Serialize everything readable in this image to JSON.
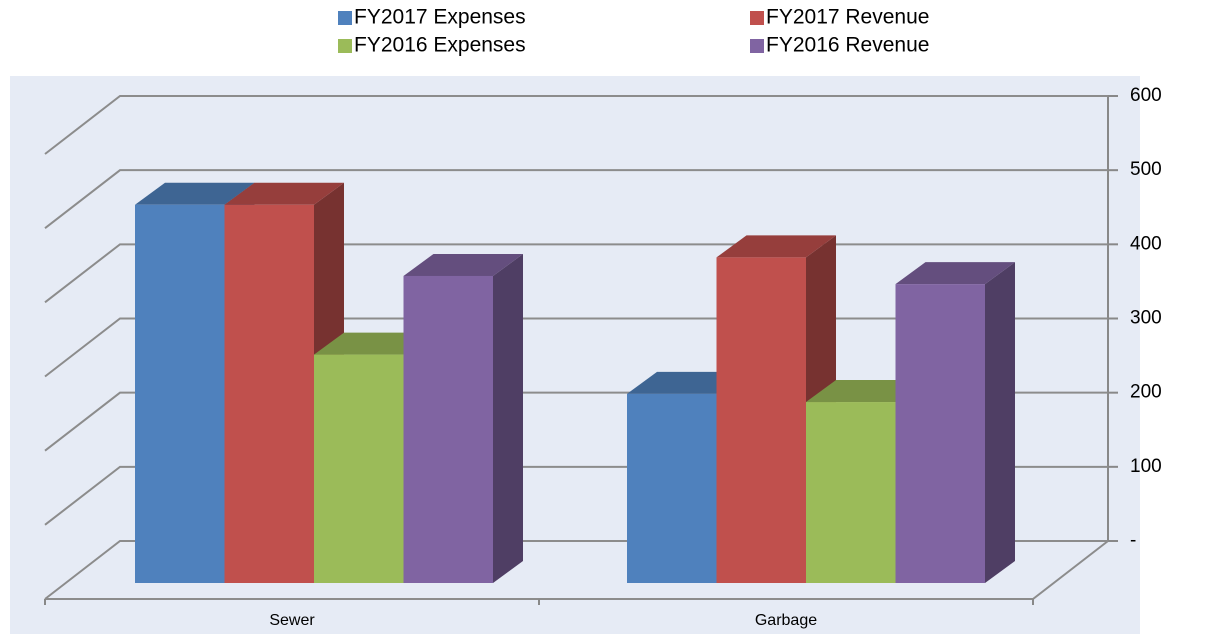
{
  "chart_data": {
    "type": "bar3d",
    "categories": [
      "Sewer",
      "Garbage"
    ],
    "series": [
      {
        "name": "FY2017 Expenses",
        "color": "#4f81bd",
        "values": [
          510,
          255
        ]
      },
      {
        "name": "FY2017 Revenue",
        "color": "#c0504d",
        "values": [
          510,
          439
        ]
      },
      {
        "name": "FY2016 Expenses",
        "color": "#9bbb59",
        "values": [
          308,
          244
        ]
      },
      {
        "name": "FY2016 Revenue",
        "color": "#8064a2",
        "values": [
          414,
          403
        ]
      }
    ],
    "ylim": [
      0,
      600
    ],
    "yticks": [
      {
        "value": 0,
        "label": "-"
      },
      100,
      200,
      300,
      400,
      500,
      600
    ],
    "grid": true,
    "legend": "top"
  }
}
